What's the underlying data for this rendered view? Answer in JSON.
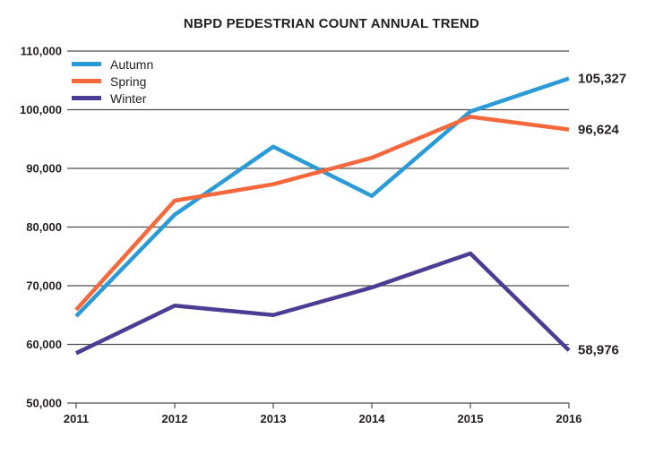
{
  "chart_data": {
    "type": "line",
    "title": "NBPD PEDESTRIAN COUNT ANNUAL TREND",
    "x": [
      "2011",
      "2012",
      "2013",
      "2014",
      "2015",
      "2016"
    ],
    "xlabel": "",
    "ylabel": "",
    "ylim": [
      50000,
      110000
    ],
    "ytick_interval": 10000,
    "ytick_labels": [
      "50,000",
      "60,000",
      "70,000",
      "80,000",
      "90,000",
      "100,000",
      "110,000"
    ],
    "grid": true,
    "legend_position": "top-left",
    "series": [
      {
        "name": "Autumn",
        "color": "#2b9bd7",
        "values": [
          64800,
          82100,
          93700,
          85300,
          99700,
          105327
        ],
        "end_label": "105,327"
      },
      {
        "name": "Spring",
        "color": "#f5683c",
        "values": [
          65900,
          84500,
          87300,
          91800,
          98800,
          96624
        ],
        "end_label": "96,624"
      },
      {
        "name": "Winter",
        "color": "#4c3c94",
        "values": [
          58500,
          66600,
          65000,
          69700,
          75500,
          58976
        ],
        "end_label": "58,976"
      }
    ],
    "colors": {
      "text": "#231f20",
      "grid": "#4d4d4d",
      "background": "#ffffff"
    }
  }
}
